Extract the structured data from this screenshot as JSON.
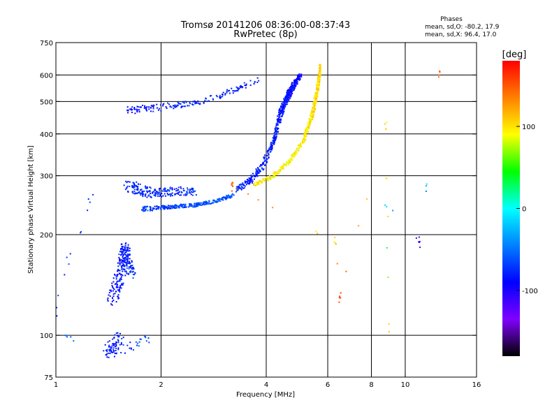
{
  "header": {
    "title": "Tromsø 20141206 08:36:00-08:37:43",
    "subtitle": "RwPretec (8p)"
  },
  "stats": {
    "heading": "Phases",
    "line_o": "mean, sd,O: -80.2, 17.9",
    "line_x": "mean, sd,X:  96.4, 17.0"
  },
  "chart_data": {
    "type": "scatter",
    "xlabel": "Frequency [MHz]",
    "ylabel": "Stationary phase Virtual Height [km]",
    "xscale": "log",
    "yscale": "log",
    "xlim": [
      1,
      16
    ],
    "ylim": [
      75,
      750
    ],
    "x_ticks": [
      1,
      2,
      4,
      6,
      8,
      10,
      16
    ],
    "x_tick_labels": [
      "1",
      "2",
      "4",
      "6",
      "8",
      "10",
      "16"
    ],
    "y_ticks": [
      75,
      100,
      200,
      300,
      400,
      500,
      600,
      750
    ],
    "y_tick_labels": [
      "75",
      "100",
      "200",
      "300",
      "400",
      "500",
      "600",
      "750"
    ],
    "grid_x": [
      2,
      4,
      6,
      8,
      10
    ],
    "grid_y": [
      100,
      200,
      300,
      400,
      500,
      600
    ],
    "colorbar": {
      "label": "[deg]",
      "range": [
        -180,
        180
      ],
      "ticks": [
        100,
        0,
        -100
      ],
      "tick_labels": [
        "100",
        "0",
        "-100"
      ],
      "colors": [
        "#ff0000",
        "#ff8000",
        "#ffff00",
        "#00ff00",
        "#00ffff",
        "#0080ff",
        "#0000ff",
        "#8000ff",
        "#000000"
      ]
    },
    "series": [
      {
        "points": [
          [
            1.3,
            290,
            -75,
            0.05,
            14
          ],
          [
            1.0,
            130,
            -70,
            0.03,
            8
          ],
          [
            1.0,
            105,
            -60,
            0.03,
            5
          ],
          [
            1.15,
            95,
            -55,
            0.02,
            4
          ]
        ]
      },
      {
        "points": [
          [
            1.52,
            98,
            -82,
            0.08,
            80
          ],
          [
            1.4,
            88,
            -85,
            0.06,
            40
          ],
          [
            1.85,
            97,
            -60,
            0.06,
            30
          ]
        ]
      },
      {
        "points": [
          [
            1.45,
            128,
            -90,
            0.07,
            90
          ],
          [
            1.55,
            160,
            -80,
            0.07,
            110
          ],
          [
            1.58,
            185,
            -85,
            0.05,
            70
          ],
          [
            1.65,
            150,
            -70,
            0.05,
            60
          ]
        ]
      },
      {
        "points": [
          [
            1.6,
            280,
            -78,
            0.07,
            120
          ],
          [
            1.9,
            265,
            -75,
            0.05,
            80
          ],
          [
            2.2,
            270,
            -82,
            0.05,
            60
          ],
          [
            2.5,
            268,
            -72,
            0.04,
            40
          ]
        ]
      },
      {
        "points": [
          [
            1.75,
            238,
            -72,
            0.03,
            70
          ],
          [
            2.1,
            242,
            -70,
            0.02,
            80
          ],
          [
            2.5,
            245,
            -65,
            0.02,
            80
          ],
          [
            2.9,
            252,
            -60,
            0.02,
            60
          ],
          [
            3.2,
            262,
            -62,
            0.02,
            50
          ]
        ]
      },
      {
        "points": [
          [
            3.3,
            272,
            -75,
            0.03,
            60
          ],
          [
            3.6,
            290,
            -78,
            0.03,
            60
          ],
          [
            3.9,
            320,
            -80,
            0.03,
            60
          ],
          [
            4.2,
            380,
            -82,
            0.02,
            80
          ],
          [
            4.4,
            460,
            -85,
            0.03,
            120
          ],
          [
            4.7,
            540,
            -88,
            0.03,
            200
          ],
          [
            5.0,
            600,
            -92,
            0.02,
            120
          ]
        ]
      },
      {
        "points": [
          [
            3.7,
            282,
            95,
            0.02,
            60
          ],
          [
            4.2,
            300,
            92,
            0.02,
            60
          ],
          [
            4.7,
            335,
            95,
            0.02,
            60
          ],
          [
            5.1,
            380,
            98,
            0.02,
            70
          ],
          [
            5.4,
            450,
            100,
            0.02,
            100
          ],
          [
            5.6,
            540,
            102,
            0.02,
            120
          ],
          [
            5.7,
            620,
            105,
            0.01,
            40
          ]
        ]
      },
      {
        "points": [
          [
            1.6,
            470,
            -90,
            0.04,
            60
          ],
          [
            2.0,
            480,
            -82,
            0.04,
            50
          ],
          [
            2.5,
            495,
            -80,
            0.03,
            40
          ],
          [
            3.1,
            530,
            -78,
            0.03,
            40
          ],
          [
            3.8,
            580,
            -85,
            0.03,
            40
          ]
        ]
      },
      {
        "points": [
          [
            3.2,
            280,
            140,
            0.01,
            8
          ],
          [
            6.3,
            190,
            105,
            0.01,
            3
          ],
          [
            6.5,
            130,
            150,
            0.01,
            3
          ],
          [
            8.8,
            420,
            100,
            0.01,
            4
          ],
          [
            9.0,
            105,
            100,
            0.01,
            2
          ],
          [
            8.8,
            250,
            -20,
            0.01,
            2
          ],
          [
            11.0,
            190,
            -110,
            0.01,
            3
          ],
          [
            12.5,
            610,
            150,
            0.01,
            4
          ]
        ]
      }
    ]
  }
}
